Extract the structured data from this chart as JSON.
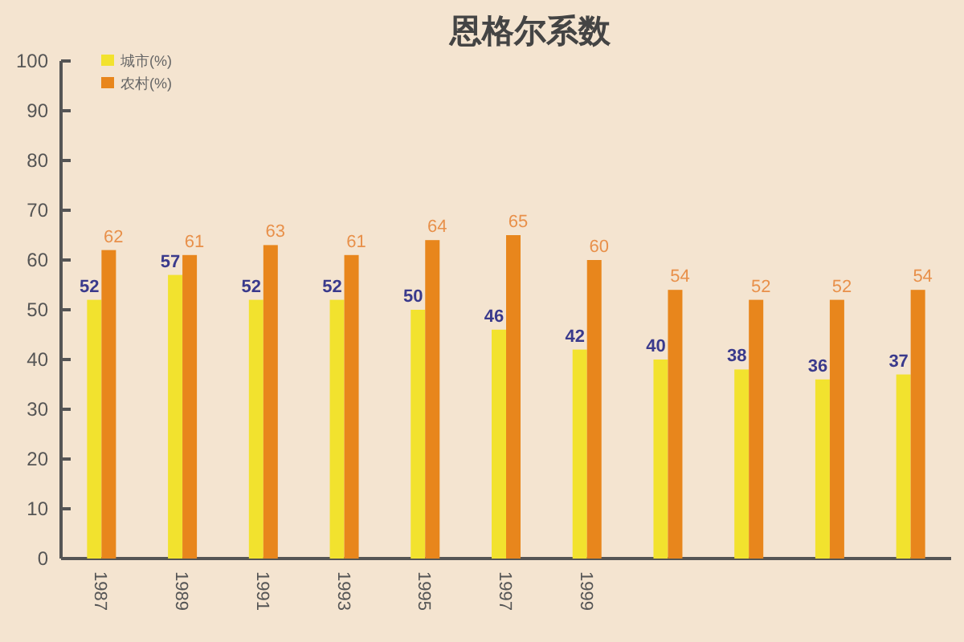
{
  "chart_data": {
    "type": "bar",
    "title": "恩格尔系数",
    "categories": [
      "1987",
      "1989",
      "1991",
      "1993",
      "1995",
      "1997",
      "1999",
      null,
      null,
      null,
      null
    ],
    "series": [
      {
        "name": "城市(%)",
        "color": "#f2e22e",
        "values": [
          52,
          57,
          52,
          52,
          50,
          46,
          42,
          40,
          38,
          36,
          37
        ]
      },
      {
        "name": "农村(%)",
        "color": "#e8861c",
        "values": [
          62,
          61,
          63,
          61,
          64,
          65,
          60,
          54,
          52,
          52,
          54
        ]
      }
    ],
    "ylim": [
      0,
      100
    ],
    "yticks": [
      0,
      10,
      20,
      30,
      40,
      50,
      60,
      70,
      80,
      90,
      100
    ],
    "data_labels": true,
    "legend": "top left",
    "grid": false
  }
}
